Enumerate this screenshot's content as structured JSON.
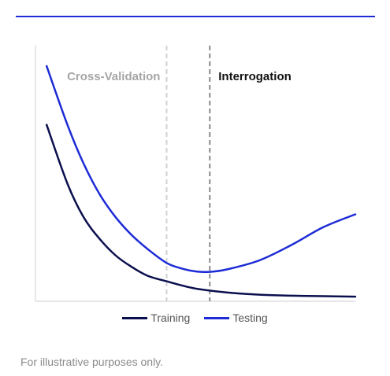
{
  "footnote": "For illustrative purposes only.",
  "colors": {
    "rule": "#1c2bd6",
    "axis": "#cccccc",
    "training": "#0a0f4d",
    "testing": "#1c2bd6",
    "cv_divider": "#d0d0d0",
    "interrogation_divider": "#8a8a8a",
    "cv_label": "#a6a6a6",
    "interrogation_label": "#111111"
  },
  "chart_data": {
    "type": "line",
    "title": "",
    "xlabel": "",
    "ylabel": "",
    "grid": false,
    "legend_position": "bottom",
    "xlim": [
      0,
      10
    ],
    "ylim": [
      0,
      10
    ],
    "annotations": [
      {
        "label": "Cross-Validation",
        "x": 4.1
      },
      {
        "label": "Interrogation",
        "x": 5.45
      }
    ],
    "series": [
      {
        "name": "Training",
        "x": [
          0.35,
          1,
          1.5,
          2,
          2.5,
          3,
          3.5,
          4.1,
          5,
          6,
          7,
          8,
          9,
          10
        ],
        "y": [
          6.9,
          4.6,
          3.3,
          2.45,
          1.8,
          1.35,
          1.0,
          0.78,
          0.5,
          0.34,
          0.26,
          0.22,
          0.2,
          0.18
        ]
      },
      {
        "name": "Testing",
        "x": [
          0.35,
          1,
          1.5,
          2,
          2.5,
          3,
          3.5,
          4.1,
          4.6,
          5,
          5.45,
          6,
          7,
          8,
          9,
          10
        ],
        "y": [
          9.2,
          6.9,
          5.4,
          4.2,
          3.3,
          2.6,
          2.05,
          1.5,
          1.27,
          1.17,
          1.15,
          1.25,
          1.6,
          2.2,
          2.9,
          3.4
        ]
      }
    ]
  }
}
